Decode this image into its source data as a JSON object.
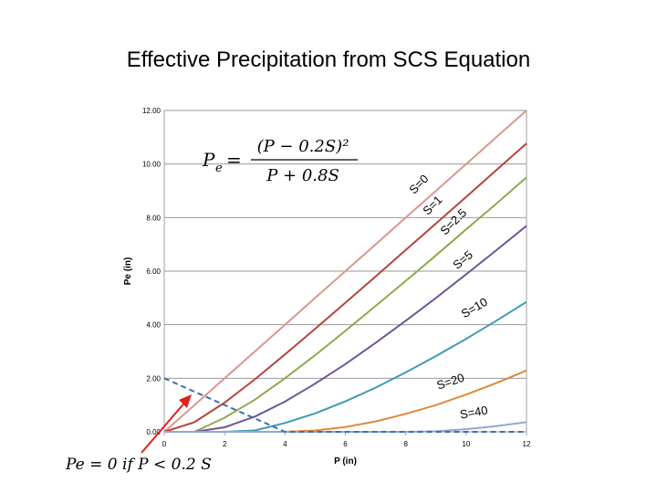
{
  "slide": {
    "title": "Effective Precipitation from SCS Equation",
    "bottom_note": "Pe = 0  if  P < 0.2 S"
  },
  "equation": {
    "lhs": "Pe",
    "numerator": "(P − 0.2S)²",
    "denominator": "P + 0.8S"
  },
  "chart_data": {
    "type": "line",
    "xlabel": "P  (in)",
    "ylabel": "Pe  (in)",
    "xlim": [
      0,
      12
    ],
    "ylim": [
      0,
      12
    ],
    "x_ticks": [
      "0",
      "2",
      "4",
      "6",
      "8",
      "10",
      "12"
    ],
    "y_ticks": [
      "0.00",
      "2.00",
      "4.00",
      "6.00",
      "8.00",
      "10.00",
      "12.00"
    ],
    "grid": "horizontal",
    "x": [
      0,
      1,
      2,
      3,
      4,
      5,
      6,
      7,
      8,
      9,
      10,
      11,
      12
    ],
    "series": [
      {
        "name": "S=0",
        "color": "#d9978f",
        "values": [
          0,
          1,
          2,
          3,
          4,
          5,
          6,
          7,
          8,
          9,
          10,
          11,
          12
        ]
      },
      {
        "name": "S=1",
        "color": "#b5443e",
        "values": [
          0,
          0.36,
          1.09,
          1.96,
          2.89,
          3.85,
          4.82,
          5.8,
          6.79,
          7.78,
          8.77,
          9.77,
          10.77
        ]
      },
      {
        "name": "S=2.5",
        "color": "#8eaa4c",
        "values": [
          0,
          0,
          0.53,
          1.2,
          2.0,
          2.86,
          3.77,
          4.7,
          5.64,
          6.59,
          7.56,
          8.52,
          9.5
        ]
      },
      {
        "name": "S=5",
        "color": "#6e559a",
        "values": [
          0,
          0,
          0.17,
          0.57,
          1.13,
          1.8,
          2.53,
          3.32,
          4.15,
          5.0,
          5.88,
          6.78,
          7.69
        ]
      },
      {
        "name": "S=10",
        "color": "#3f9ab2",
        "values": [
          0,
          0,
          0,
          0.05,
          0.33,
          0.69,
          1.14,
          1.65,
          2.22,
          2.83,
          3.47,
          4.15,
          4.85
        ]
      },
      {
        "name": "S=20",
        "color": "#e0883b",
        "values": [
          0,
          0,
          0,
          0,
          0,
          0.05,
          0.18,
          0.39,
          0.67,
          1.0,
          1.39,
          1.82,
          2.29
        ]
      },
      {
        "name": "S=40",
        "color": "#8fa9cf",
        "values": [
          0,
          0,
          0,
          0,
          0,
          0,
          0,
          0,
          0,
          0.02,
          0.1,
          0.21,
          0.36
        ]
      },
      {
        "name": "",
        "color": "#3e6fb0",
        "dashed": true,
        "values": [
          2,
          1.5,
          1.0,
          0.5,
          0.0,
          0.0,
          0.0,
          0.0,
          0.0,
          0.0,
          0.0,
          0.0,
          0.0
        ]
      }
    ]
  }
}
